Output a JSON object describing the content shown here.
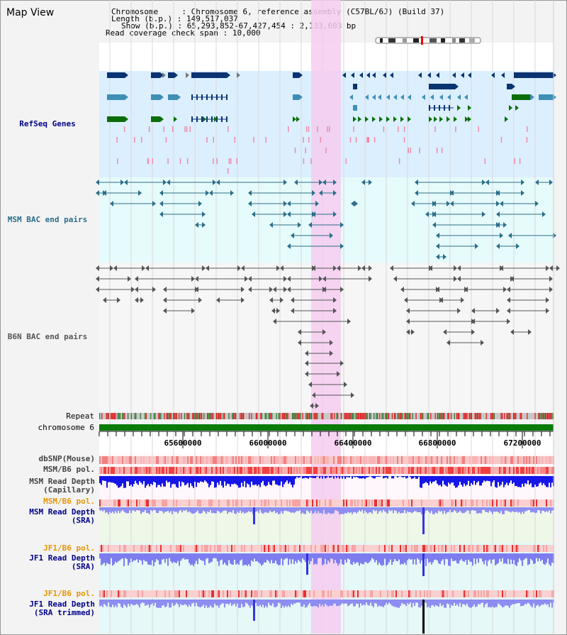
{
  "view": {
    "title": "Map View"
  },
  "info": {
    "chromosome_key": "Chromosome",
    "chromosome_val": "Chromosome 6, reference assembly (C57BL/6J) (Build 37)",
    "length_key": "Length (b.p.)",
    "length_val": "149,517,037",
    "show_key": "Show (b.p.)",
    "show_val": "65,293,852-67,427,454 : 2,133,603 bp",
    "coverage_key": "Read coverage check span",
    "coverage_val": "10,000"
  },
  "tracks": {
    "refseq": "RefSeq Genes",
    "msm_bac": "MSM BAC end pairs",
    "b6n_bac": "B6N BAC end pairs",
    "repeat": "Repeat",
    "chromosome": "chromosome 6",
    "dbsnp": "dbSNP(Mouse)",
    "msm_pol": "MSM/B6 pol.",
    "msm_depth_cap_1": "MSM Read Depth",
    "msm_depth_cap_2": "(Capillary)",
    "msm_pol_2": "MSM/B6 pol.",
    "msm_depth_sra_1": "MSM Read Depth",
    "msm_depth_sra_2": "(SRA)",
    "jf1_pol": "JF1/B6 pol.",
    "jf1_depth_sra_1": "JF1 Read Depth",
    "jf1_depth_sra_2": "(SRA)",
    "jf1_pol_2": "JF1/B6 pol.",
    "jf1_depth_trim_1": "JF1 Read Depth",
    "jf1_depth_trim_2": "(SRA trimmed)"
  },
  "axis_ticks": [
    "65600000",
    "66000000",
    "66400000",
    "66800000",
    "67200000"
  ],
  "colors": {
    "refseq_bg": "#dcefff",
    "msm_bg": "#e6fbfb",
    "highlight": "#f5ccf0",
    "gene_dark": "#0a3471",
    "gene_mid": "#3f8fb5",
    "gene_green": "#0b6e0b",
    "msm_line": "#2b6e8a",
    "b6n_line": "#555555",
    "chrom_green": "#0a7a0a",
    "label_blue": "#00008b",
    "label_orange": "#e69500"
  }
}
